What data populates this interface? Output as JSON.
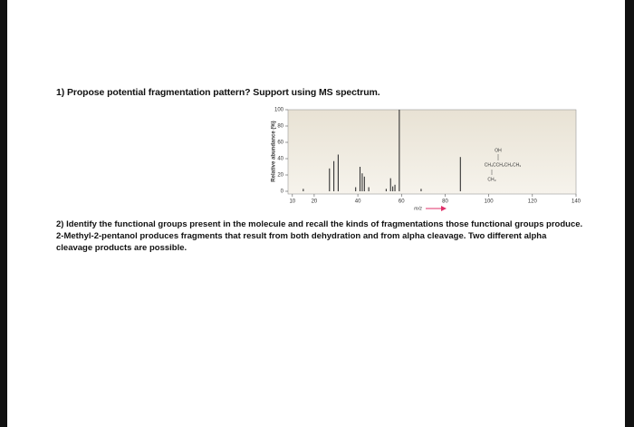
{
  "question_1": "1) Propose potential fragmentation pattern? Support using MS spectrum.",
  "spectrum": {
    "chart_data": {
      "type": "bar",
      "y_label": "Relative abundance (%)",
      "x_label": "m/z",
      "structure": [
        "OH",
        "CH₃CCH₂CH₂CH₃",
        "CH₃"
      ],
      "x": [
        15,
        27,
        29,
        31,
        39,
        41,
        42,
        43,
        45,
        53,
        55,
        56,
        57,
        59,
        69,
        87
      ],
      "values": [
        3,
        28,
        37,
        45,
        5,
        30,
        22,
        18,
        5,
        3,
        16,
        6,
        8,
        100,
        3,
        42
      ],
      "color": "#333333",
      "xlim": [
        8,
        140
      ],
      "xticks": [
        10,
        20,
        40,
        60,
        80,
        100,
        120,
        140
      ],
      "ylim": [
        0,
        100
      ],
      "yticks": [
        0,
        20,
        40,
        60,
        80,
        100
      ]
    }
  },
  "question_2": [
    "2) Identify the functional groups present in the molecule and recall the kinds of fragmentations those functional groups produce.",
    "2-Methyl-2-pentanol produces fragments that result from both dehydration and from alpha cleavage. Two different alpha",
    "cleavage products are possible."
  ]
}
